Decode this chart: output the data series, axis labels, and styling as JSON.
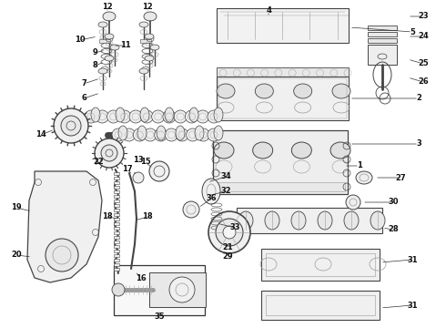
{
  "background_color": "#ffffff",
  "figsize": [
    4.9,
    3.6
  ],
  "dpi": 100,
  "label_fontsize": 6.0,
  "gray": "#444444",
  "lgray": "#999999",
  "llgray": "#cccccc",
  "line_color": "#333333"
}
